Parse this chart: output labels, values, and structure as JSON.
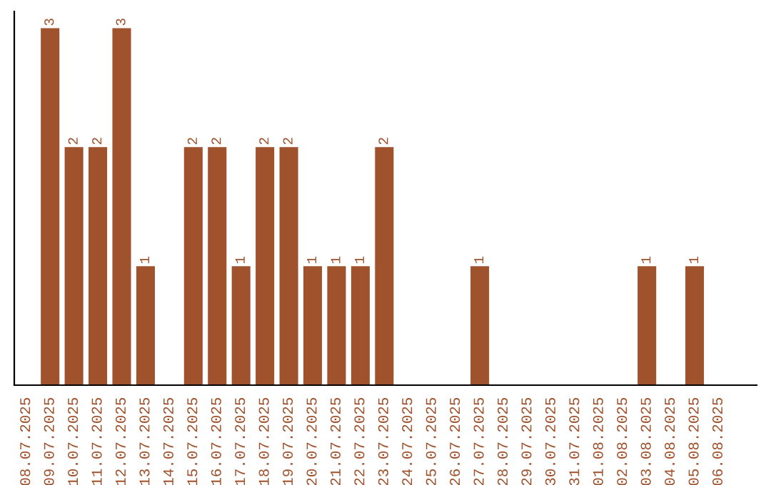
{
  "chart_data": {
    "type": "bar",
    "categories": [
      "08.07.2025",
      "09.07.2025",
      "10.07.2025",
      "11.07.2025",
      "12.07.2025",
      "13.07.2025",
      "14.07.2025",
      "15.07.2025",
      "16.07.2025",
      "17.07.2025",
      "18.07.2025",
      "19.07.2025",
      "20.07.2025",
      "21.07.2025",
      "22.07.2025",
      "23.07.2025",
      "24.07.2025",
      "25.07.2025",
      "26.07.2025",
      "27.07.2025",
      "28.07.2025",
      "29.07.2025",
      "30.07.2025",
      "31.07.2025",
      "01.08.2025",
      "02.08.2025",
      "03.08.2025",
      "04.08.2025",
      "05.08.2025",
      "06.08.2025"
    ],
    "values": [
      0,
      3,
      2,
      2,
      3,
      1,
      0,
      2,
      2,
      1,
      2,
      2,
      1,
      1,
      1,
      2,
      0,
      0,
      0,
      1,
      0,
      0,
      0,
      0,
      0,
      0,
      1,
      0,
      1,
      0
    ],
    "value_labels": [
      null,
      "3",
      "2",
      "2",
      "3",
      "1",
      null,
      "2",
      "2",
      "1",
      "2",
      "2",
      "1",
      "1",
      "1",
      "2",
      null,
      null,
      null,
      "1",
      null,
      null,
      null,
      null,
      null,
      null,
      "1",
      null,
      "1",
      null
    ],
    "color": "#a0522d",
    "tick_labels": "x",
    "grid": false
  }
}
